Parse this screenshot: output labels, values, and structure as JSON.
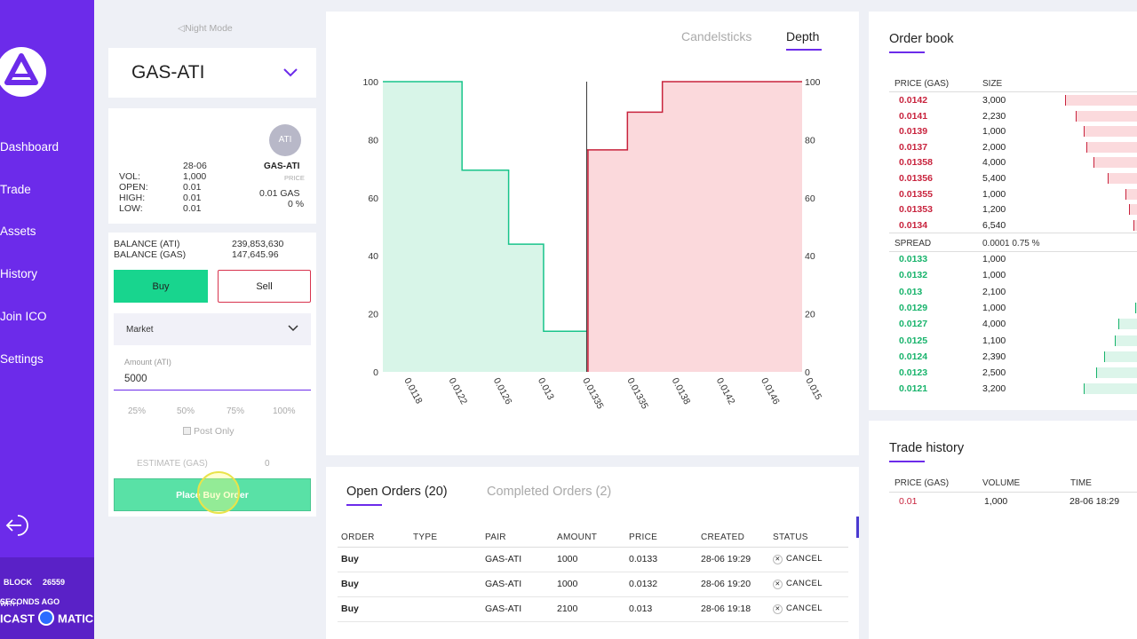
{
  "sidebar": {
    "items": [
      {
        "label": "Dashboard"
      },
      {
        "label": "Trade"
      },
      {
        "label": "Assets"
      },
      {
        "label": "History"
      },
      {
        "label": "Join ICO"
      },
      {
        "label": "Settings"
      }
    ],
    "block_label": "BLOCK",
    "block_number": "26559",
    "secs_ago": "SECONDS AGO",
    "with_label": "WITH",
    "brand_left": "ICAST",
    "brand_right": "MATIC"
  },
  "trade": {
    "night_mode": "Night Mode",
    "pair": "GAS-ATI",
    "avatar": "ATI",
    "stats": {
      "date": "28-06",
      "labels": [
        "VOL:",
        "OPEN:",
        "HIGH:",
        "LOW:"
      ],
      "values": [
        "1,000",
        "0.01",
        "0.01",
        "0.01"
      ],
      "pair": "GAS-ATI",
      "price_label": "PRICE",
      "price": "0.01 GAS",
      "change": "0 %"
    },
    "balance_ati_label": "BALANCE (ATI)",
    "balance_ati": "239,853,630",
    "balance_gas_label": "BALANCE (GAS)",
    "balance_gas": "147,645.96",
    "buy_label": "Buy",
    "sell_label": "Sell",
    "order_type": "Market",
    "amount_label": "Amount (ATI)",
    "amount_value": "5000",
    "percents": [
      "25%",
      "50%",
      "75%",
      "100%"
    ],
    "post_only": "Post Only",
    "estimate_label": "ESTIMATE (GAS)",
    "estimate_value": "0",
    "place_label": "Place Buy Order"
  },
  "chart": {
    "tabs": [
      "Candelsticks",
      "Depth"
    ],
    "active_tab": "Depth",
    "colors": {
      "bid": "#18c48a",
      "bid_fill": "#d8f5e8",
      "ask": "#c8233d",
      "ask_fill": "#fbd9dc"
    }
  },
  "chart_data": {
    "type": "area",
    "title": "",
    "x_ticks": [
      "0.0118",
      "0.0122",
      "0.0126",
      "0.013",
      "0.01335",
      "0.01335",
      "0.0138",
      "0.0142",
      "0.0146",
      "0.015"
    ],
    "y_ticks": [
      "0",
      "20",
      "40",
      "60",
      "80",
      "100"
    ],
    "ylim": [
      0,
      100
    ],
    "xlim": [
      0.0116,
      0.0152
    ],
    "mid_price": 0.01335,
    "series": [
      {
        "side": "bid",
        "x": [
          0.0116,
          0.01228,
          0.01228,
          0.01268,
          0.01268,
          0.01298,
          0.01298,
          0.01335
        ],
        "y": [
          100,
          100,
          69.5,
          69.5,
          44,
          44,
          14,
          14
        ]
      },
      {
        "side": "ask",
        "x": [
          0.01335,
          0.0137,
          0.0137,
          0.014,
          0.014,
          0.0152
        ],
        "y": [
          76.5,
          76.5,
          89.5,
          89.5,
          100,
          100
        ]
      }
    ],
    "grid": false
  },
  "orders": {
    "tab_open": "Open Orders (20)",
    "tab_completed": "Completed Orders (2)",
    "headers": [
      "ORDER",
      "TYPE",
      "PAIR",
      "AMOUNT",
      "PRICE",
      "CREATED",
      "STATUS"
    ],
    "rows": [
      {
        "order": "Buy",
        "type": "",
        "pair": "GAS-ATI",
        "amount": "1000",
        "price": "0.0133",
        "created": "28-06 19:29",
        "status": "CANCEL"
      },
      {
        "order": "Buy",
        "type": "",
        "pair": "GAS-ATI",
        "amount": "1000",
        "price": "0.0132",
        "created": "28-06 19:20",
        "status": "CANCEL"
      },
      {
        "order": "Buy",
        "type": "",
        "pair": "GAS-ATI",
        "amount": "2100",
        "price": "0.013",
        "created": "28-06 19:18",
        "status": "CANCEL"
      }
    ]
  },
  "book": {
    "title": "Order book",
    "headers": [
      "PRICE (GAS)",
      "SIZE"
    ],
    "asks": [
      {
        "price": "0.0142",
        "size": "3,000",
        "depth": 0.75
      },
      {
        "price": "0.0141",
        "size": "2,230",
        "depth": 0.64
      },
      {
        "price": "0.0139",
        "size": "1,000",
        "depth": 0.56
      },
      {
        "price": "0.0137",
        "size": "2,000",
        "depth": 0.53
      },
      {
        "price": "0.01358",
        "size": "4,000",
        "depth": 0.45
      },
      {
        "price": "0.01356",
        "size": "5,400",
        "depth": 0.31
      },
      {
        "price": "0.01355",
        "size": "1,000",
        "depth": 0.12
      },
      {
        "price": "0.01353",
        "size": "1,200",
        "depth": 0.08
      },
      {
        "price": "0.0134",
        "size": "6,540",
        "depth": 0.04
      }
    ],
    "spread_label": "SPREAD",
    "spread_value": "0.0001 0.75 %",
    "bids": [
      {
        "price": "0.0133",
        "size": "1,000",
        "depth": 0.0
      },
      {
        "price": "0.0132",
        "size": "1,000",
        "depth": 0.0
      },
      {
        "price": "0.013",
        "size": "2,100",
        "depth": 0.0
      },
      {
        "price": "0.0129",
        "size": "1,000",
        "depth": 0.02
      },
      {
        "price": "0.0127",
        "size": "4,000",
        "depth": 0.19
      },
      {
        "price": "0.0125",
        "size": "1,100",
        "depth": 0.23
      },
      {
        "price": "0.0124",
        "size": "2,390",
        "depth": 0.34
      },
      {
        "price": "0.0123",
        "size": "2,500",
        "depth": 0.43
      },
      {
        "price": "0.0121",
        "size": "3,200",
        "depth": 0.56
      }
    ]
  },
  "history": {
    "title": "Trade history",
    "headers": [
      "PRICE (GAS)",
      "VOLUME",
      "TIME"
    ],
    "rows": [
      {
        "price": "0.01",
        "volume": "1,000",
        "time": "28-06 18:29"
      }
    ]
  }
}
